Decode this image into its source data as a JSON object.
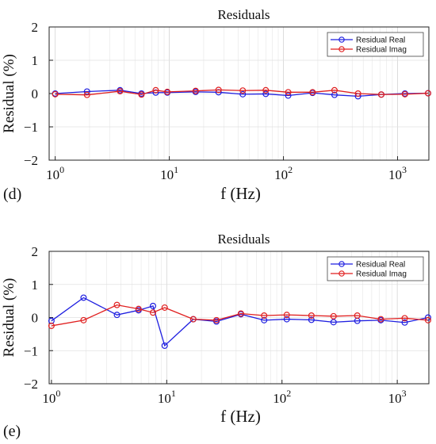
{
  "chart_data": [
    {
      "type": "line",
      "panel_label": "(d)",
      "title": "Residuals",
      "xlabel": "f (Hz)",
      "ylabel": "Residual (%)",
      "x_scale": "log",
      "ylim": [
        -2,
        2
      ],
      "y_ticks": [
        "2",
        "1",
        "0",
        "−1",
        "−2"
      ],
      "y_tick_values": [
        2,
        1,
        0,
        -1,
        -2
      ],
      "x_ticks": [
        {
          "value": 1,
          "base": "10",
          "exp": "0"
        },
        {
          "value": 10,
          "base": "10",
          "exp": "1"
        },
        {
          "value": 100,
          "base": "10",
          "exp": "2"
        },
        {
          "value": 1000,
          "base": "10",
          "exp": "3"
        }
      ],
      "legend": {
        "position": "top-right"
      },
      "grid": true,
      "x": [
        1,
        1.9,
        3.7,
        5.7,
        7.6,
        9.6,
        17,
        27,
        44,
        70,
        110,
        180,
        280,
        450,
        720,
        1160,
        1850
      ],
      "series": [
        {
          "name": "Residual Real",
          "color": "#1f1fe0",
          "values": [
            0.0,
            0.06,
            0.1,
            0.0,
            0.03,
            0.03,
            0.05,
            0.04,
            -0.02,
            -0.01,
            -0.06,
            0.02,
            -0.04,
            -0.08,
            -0.03,
            0.0,
            0.01
          ]
        },
        {
          "name": "Residual Imag",
          "color": "#e01f1f",
          "values": [
            -0.02,
            -0.04,
            0.07,
            -0.03,
            0.1,
            0.05,
            0.08,
            0.11,
            0.09,
            0.1,
            0.04,
            0.04,
            0.1,
            0.0,
            -0.03,
            -0.02,
            0.01
          ]
        }
      ]
    },
    {
      "type": "line",
      "panel_label": "(e)",
      "title": "Residuals",
      "xlabel": "f (Hz)",
      "ylabel": "Residual (%)",
      "x_scale": "log",
      "ylim": [
        -2,
        2
      ],
      "y_ticks": [
        "2",
        "1",
        "0",
        "−1",
        "−2"
      ],
      "y_tick_values": [
        2,
        1,
        0,
        -1,
        -2
      ],
      "x_ticks": [
        {
          "value": 1,
          "base": "10",
          "exp": "0"
        },
        {
          "value": 10,
          "base": "10",
          "exp": "1"
        },
        {
          "value": 100,
          "base": "10",
          "exp": "2"
        },
        {
          "value": 1000,
          "base": "10",
          "exp": "3"
        }
      ],
      "legend": {
        "position": "top-right"
      },
      "grid": true,
      "x": [
        1,
        1.9,
        3.7,
        5.7,
        7.6,
        9.6,
        17,
        27,
        44,
        70,
        110,
        180,
        280,
        450,
        720,
        1160,
        1850
      ],
      "series": [
        {
          "name": "Residual Real",
          "color": "#1f1fe0",
          "values": [
            -0.1,
            0.6,
            0.08,
            0.22,
            0.35,
            -0.85,
            -0.05,
            -0.12,
            0.1,
            -0.08,
            -0.05,
            -0.07,
            -0.14,
            -0.1,
            -0.08,
            -0.15,
            0.0
          ]
        },
        {
          "name": "Residual Imag",
          "color": "#e01f1f",
          "values": [
            -0.25,
            -0.08,
            0.38,
            0.26,
            0.15,
            0.3,
            -0.05,
            -0.08,
            0.12,
            0.06,
            0.08,
            0.06,
            0.04,
            0.06,
            -0.05,
            -0.02,
            -0.08
          ]
        }
      ]
    }
  ]
}
